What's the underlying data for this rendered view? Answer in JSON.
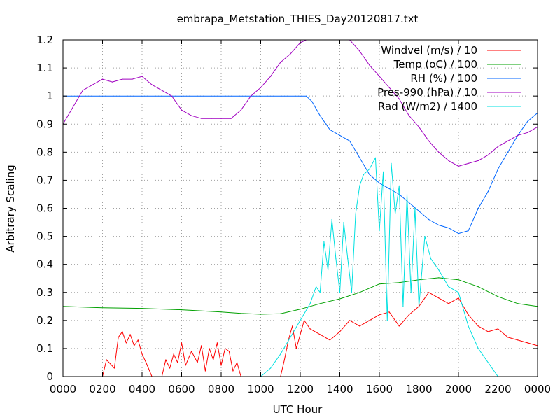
{
  "chart_data": {
    "type": "line",
    "title": "embrapa_Metstation_THIES_Day20120817.txt",
    "xlabel": "UTC Hour",
    "ylabel": "Arbitrary Scaling",
    "xlim": [
      0,
      24
    ],
    "ylim": [
      0,
      1.2
    ],
    "grid": true,
    "legend_position": "top-right",
    "x_ticks": [
      {
        "value": 0,
        "label": "0000"
      },
      {
        "value": 2,
        "label": "0200"
      },
      {
        "value": 4,
        "label": "0400"
      },
      {
        "value": 6,
        "label": "0600"
      },
      {
        "value": 8,
        "label": "0800"
      },
      {
        "value": 10,
        "label": "1000"
      },
      {
        "value": 12,
        "label": "1200"
      },
      {
        "value": 14,
        "label": "1400"
      },
      {
        "value": 16,
        "label": "1600"
      },
      {
        "value": 18,
        "label": "1800"
      },
      {
        "value": 20,
        "label": "2000"
      },
      {
        "value": 22,
        "label": "2200"
      },
      {
        "value": 24,
        "label": "0000"
      }
    ],
    "y_ticks": [
      {
        "value": 0,
        "label": "0"
      },
      {
        "value": 0.1,
        "label": "0.1"
      },
      {
        "value": 0.2,
        "label": "0.2"
      },
      {
        "value": 0.3,
        "label": "0.3"
      },
      {
        "value": 0.4,
        "label": "0.4"
      },
      {
        "value": 0.5,
        "label": "0.5"
      },
      {
        "value": 0.6,
        "label": "0.6"
      },
      {
        "value": 0.7,
        "label": "0.7"
      },
      {
        "value": 0.8,
        "label": "0.8"
      },
      {
        "value": 0.9,
        "label": "0.9"
      },
      {
        "value": 1,
        "label": "1"
      },
      {
        "value": 1.1,
        "label": "1.1"
      },
      {
        "value": 1.2,
        "label": "1.2"
      }
    ],
    "series": [
      {
        "name": "Windvel (m/s) / 10",
        "color": "#ff0000",
        "x": [
          0,
          1,
          2,
          2.2,
          2.6,
          2.8,
          3,
          3.2,
          3.4,
          3.6,
          3.8,
          4.0,
          4.2,
          4.5,
          5.0,
          5.2,
          5.4,
          5.6,
          5.8,
          6.0,
          6.2,
          6.5,
          6.8,
          7.0,
          7.2,
          7.4,
          7.6,
          7.8,
          8.0,
          8.2,
          8.4,
          8.6,
          8.8,
          9.0,
          10.0,
          11.0,
          11.2,
          11.4,
          11.6,
          11.8,
          12.0,
          12.2,
          12.5,
          13.0,
          13.5,
          14.0,
          14.5,
          15.0,
          15.5,
          16.0,
          16.5,
          17.0,
          17.5,
          18.0,
          18.5,
          19.0,
          19.5,
          20.0,
          20.5,
          21.0,
          21.5,
          22.0,
          22.5,
          23.0,
          23.5,
          24.0
        ],
        "y": [
          0,
          0,
          0,
          0.06,
          0.03,
          0.14,
          0.16,
          0.12,
          0.15,
          0.11,
          0.13,
          0.08,
          0.05,
          0,
          0,
          0.06,
          0.03,
          0.08,
          0.05,
          0.12,
          0.04,
          0.09,
          0.05,
          0.11,
          0.02,
          0.1,
          0.06,
          0.12,
          0.04,
          0.1,
          0.09,
          0.02,
          0.05,
          0,
          0,
          0,
          0.06,
          0.13,
          0.18,
          0.1,
          0.15,
          0.2,
          0.17,
          0.15,
          0.13,
          0.16,
          0.2,
          0.18,
          0.2,
          0.22,
          0.23,
          0.18,
          0.22,
          0.25,
          0.3,
          0.28,
          0.26,
          0.28,
          0.22,
          0.18,
          0.16,
          0.17,
          0.14,
          0.13,
          0.12,
          0.11
        ]
      },
      {
        "name": "Temp (oC) / 100",
        "color": "#00a000",
        "x": [
          0,
          2,
          4,
          6,
          8,
          9,
          10,
          11,
          12,
          13,
          14,
          15,
          16,
          17,
          18,
          19,
          20,
          21,
          22,
          23,
          24
        ],
        "y": [
          0.25,
          0.245,
          0.243,
          0.238,
          0.23,
          0.225,
          0.222,
          0.224,
          0.24,
          0.26,
          0.277,
          0.3,
          0.33,
          0.335,
          0.345,
          0.352,
          0.345,
          0.32,
          0.285,
          0.26,
          0.25
        ]
      },
      {
        "name": "RH (%) / 100",
        "color": "#0066ff",
        "x": [
          0,
          12.3,
          12.6,
          13.0,
          13.5,
          14.0,
          14.5,
          15.0,
          15.5,
          16.0,
          16.5,
          17.0,
          17.5,
          18.0,
          18.5,
          19.0,
          19.5,
          20.0,
          20.5,
          21.0,
          21.5,
          22.0,
          22.5,
          23.0,
          23.5,
          24.0
        ],
        "y": [
          1,
          1,
          0.98,
          0.93,
          0.88,
          0.86,
          0.84,
          0.78,
          0.72,
          0.69,
          0.67,
          0.65,
          0.62,
          0.59,
          0.56,
          0.54,
          0.53,
          0.51,
          0.52,
          0.6,
          0.66,
          0.74,
          0.8,
          0.86,
          0.91,
          0.94
        ]
      },
      {
        "name": "Pres-990 (hPa) / 10",
        "color": "#a000c0",
        "x": [
          0,
          0.5,
          1,
          1.5,
          2,
          2.5,
          3,
          3.5,
          4,
          4.5,
          5,
          5.5,
          6,
          6.5,
          7,
          7.5,
          8,
          8.5,
          9,
          9.5,
          10,
          10.5,
          11,
          11.5,
          12,
          12.3,
          14.5,
          15,
          15.5,
          16,
          16.5,
          17,
          17.5,
          18,
          18.5,
          19,
          19.5,
          20,
          20.5,
          21,
          21.5,
          22,
          22.5,
          23,
          23.5,
          24
        ],
        "y": [
          0.9,
          0.96,
          1.02,
          1.04,
          1.06,
          1.05,
          1.06,
          1.06,
          1.07,
          1.04,
          1.02,
          1.0,
          0.95,
          0.93,
          0.92,
          0.92,
          0.92,
          0.92,
          0.95,
          1.0,
          1.03,
          1.07,
          1.12,
          1.15,
          1.19,
          1.2,
          1.2,
          1.16,
          1.11,
          1.07,
          1.03,
          0.99,
          0.93,
          0.89,
          0.84,
          0.8,
          0.77,
          0.75,
          0.76,
          0.77,
          0.79,
          0.82,
          0.84,
          0.86,
          0.87,
          0.89
        ]
      },
      {
        "name": "Rad (W/m2) / 1400",
        "color": "#00e0e0",
        "x": [
          0,
          10.0,
          10.5,
          11.0,
          11.5,
          12.0,
          12.5,
          12.8,
          13.0,
          13.2,
          13.4,
          13.6,
          13.8,
          14.0,
          14.2,
          14.4,
          14.6,
          14.8,
          15.0,
          15.2,
          15.5,
          15.8,
          16.0,
          16.2,
          16.4,
          16.6,
          16.8,
          17.0,
          17.2,
          17.4,
          17.6,
          17.8,
          18.0,
          18.3,
          18.6,
          19.0,
          19.5,
          20.0,
          20.5,
          21.0,
          21.5,
          22.0,
          24.0
        ],
        "y": [
          0,
          0,
          0.03,
          0.08,
          0.14,
          0.2,
          0.26,
          0.32,
          0.3,
          0.48,
          0.38,
          0.56,
          0.42,
          0.3,
          0.55,
          0.42,
          0.3,
          0.58,
          0.68,
          0.72,
          0.74,
          0.78,
          0.52,
          0.73,
          0.2,
          0.76,
          0.58,
          0.68,
          0.25,
          0.65,
          0.3,
          0.6,
          0.25,
          0.5,
          0.42,
          0.38,
          0.32,
          0.3,
          0.18,
          0.1,
          0.05,
          0.0,
          0.0
        ]
      }
    ]
  }
}
